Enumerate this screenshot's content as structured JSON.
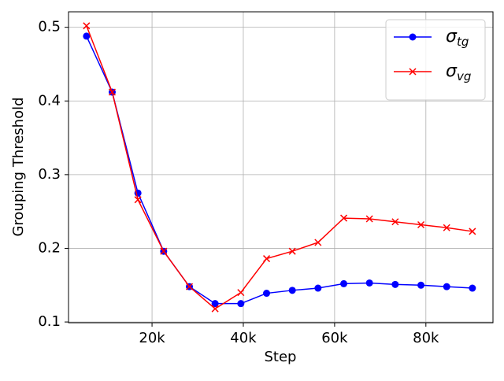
{
  "chart_data": {
    "type": "line",
    "xlabel": "Step",
    "ylabel": "Grouping Threshold",
    "x": [
      5640,
      11270,
      16910,
      22550,
      28190,
      33820,
      39460,
      45100,
      50730,
      56370,
      62010,
      67640,
      73280,
      78920,
      84560,
      90190
    ],
    "series": [
      {
        "name": "σtg",
        "color": "#0000ff",
        "marker": "circle",
        "values": [
          0.488,
          0.412,
          0.275,
          0.196,
          0.148,
          0.125,
          0.125,
          0.139,
          0.143,
          0.146,
          0.152,
          0.153,
          0.151,
          0.15,
          0.148,
          0.146
        ]
      },
      {
        "name": "σvg",
        "color": "#ff0000",
        "marker": "x",
        "values": [
          0.502,
          0.412,
          0.266,
          0.196,
          0.148,
          0.118,
          0.14,
          0.186,
          0.196,
          0.208,
          0.241,
          0.24,
          0.236,
          0.232,
          0.228,
          0.223
        ]
      }
    ],
    "xlim": [
      1700,
      94700
    ],
    "ylim": [
      0.099,
      0.521
    ],
    "xticks": [
      {
        "value": 20000,
        "label": "20k"
      },
      {
        "value": 40000,
        "label": "40k"
      },
      {
        "value": 60000,
        "label": "60k"
      },
      {
        "value": 80000,
        "label": "80k"
      }
    ],
    "yticks": [
      0.1,
      0.2,
      0.3,
      0.4,
      0.5
    ],
    "grid": true,
    "legend": "upper right"
  }
}
